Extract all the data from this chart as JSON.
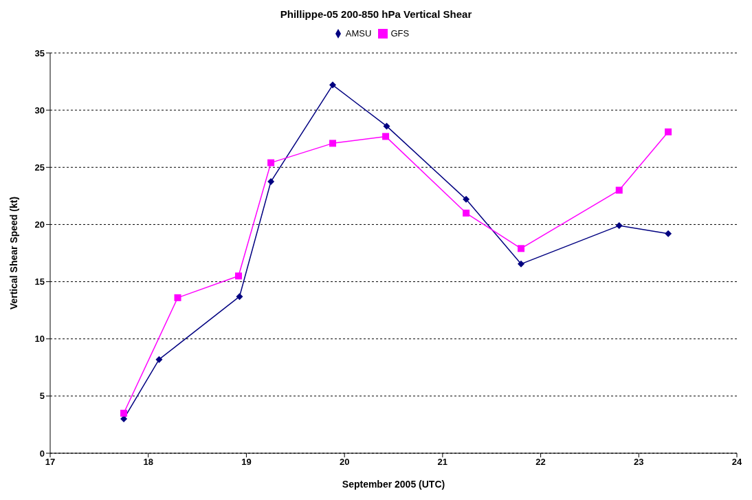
{
  "chart_data": {
    "type": "line",
    "title": "Phillippe-05 200-850 hPa Vertical Shear",
    "xlabel": "September 2005 (UTC)",
    "ylabel": "Vertical Shear Speed (kt)",
    "series": [
      {
        "name": "AMSU",
        "color": "#000080",
        "marker": "diamond",
        "x": [
          17.75,
          18.11,
          18.93,
          19.25,
          19.88,
          20.43,
          21.24,
          21.8,
          22.8,
          23.3
        ],
        "values": [
          3.0,
          8.2,
          13.7,
          23.75,
          32.2,
          28.6,
          22.2,
          16.55,
          19.9,
          19.2
        ]
      },
      {
        "name": "GFS",
        "color": "#ff00ff",
        "marker": "square",
        "x": [
          17.75,
          18.3,
          18.92,
          19.25,
          19.88,
          20.42,
          21.24,
          21.8,
          22.8,
          23.3
        ],
        "values": [
          3.5,
          13.6,
          15.5,
          25.4,
          27.1,
          27.7,
          21.0,
          17.9,
          23.0,
          28.1
        ]
      }
    ],
    "xlim": [
      17,
      24
    ],
    "xticks": [
      17,
      18,
      19,
      20,
      21,
      22,
      23,
      24
    ],
    "ylim": [
      0,
      35
    ],
    "yticks": [
      0,
      5,
      10,
      15,
      20,
      25,
      30,
      35
    ],
    "grid": "y",
    "legend": "top",
    "line_style": "solid"
  }
}
